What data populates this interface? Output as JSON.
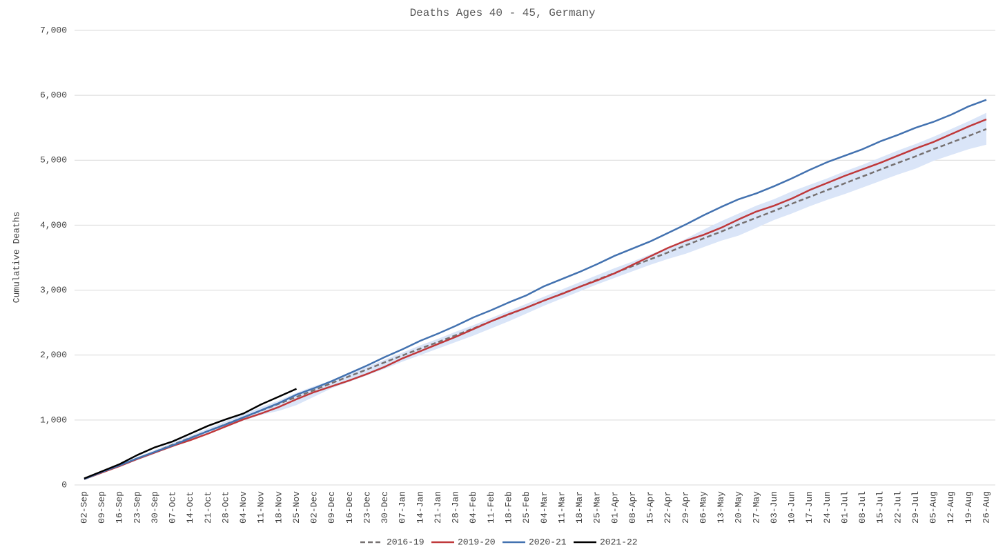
{
  "chart_data": {
    "type": "line",
    "title": "Deaths Ages 40 - 45, Germany",
    "y_label": "Cumulative Deaths",
    "categories": [
      "02-Sep",
      "09-Sep",
      "16-Sep",
      "23-Sep",
      "30-Sep",
      "07-Oct",
      "14-Oct",
      "21-Oct",
      "28-Oct",
      "04-Nov",
      "11-Nov",
      "18-Nov",
      "25-Nov",
      "02-Dec",
      "09-Dec",
      "16-Dec",
      "23-Dec",
      "30-Dec",
      "07-Jan",
      "14-Jan",
      "21-Jan",
      "28-Jan",
      "04-Feb",
      "11-Feb",
      "18-Feb",
      "25-Feb",
      "04-Mar",
      "11-Mar",
      "18-Mar",
      "25-Mar",
      "01-Apr",
      "08-Apr",
      "15-Apr",
      "22-Apr",
      "29-Apr",
      "06-May",
      "13-May",
      "20-May",
      "27-May",
      "03-Jun",
      "10-Jun",
      "17-Jun",
      "24-Jun",
      "01-Jul",
      "08-Jul",
      "15-Jul",
      "22-Jul",
      "29-Jul",
      "05-Aug",
      "12-Aug",
      "19-Aug",
      "26-Aug"
    ],
    "ylim": [
      0,
      7000
    ],
    "yticks": [
      0,
      {
        "value": 1000,
        "label": "1,000"
      },
      {
        "value": 2000,
        "label": "2,000"
      },
      {
        "value": 3000,
        "label": "3,000"
      },
      {
        "value": 4000,
        "label": "4,000"
      },
      {
        "value": 5000,
        "label": "5,000"
      },
      {
        "value": 6000,
        "label": "6,000"
      },
      {
        "value": 7000,
        "label": "7,000"
      }
    ],
    "grid": true,
    "legend": "bottom",
    "range_band": {
      "color": "#dae5f8",
      "lower": [
        80,
        180,
        280,
        380,
        480,
        590,
        690,
        790,
        890,
        990,
        1080,
        1140,
        1230,
        1360,
        1490,
        1590,
        1690,
        1790,
        1900,
        2000,
        2100,
        2200,
        2300,
        2410,
        2520,
        2640,
        2760,
        2870,
        2980,
        3090,
        3190,
        3290,
        3390,
        3480,
        3560,
        3660,
        3760,
        3840,
        3960,
        4080,
        4180,
        4290,
        4390,
        4480,
        4580,
        4680,
        4780,
        4870,
        4990,
        5080,
        5170,
        5240
      ],
      "upper": [
        100,
        210,
        320,
        430,
        540,
        650,
        760,
        870,
        980,
        1090,
        1200,
        1300,
        1420,
        1520,
        1610,
        1710,
        1820,
        1930,
        2040,
        2150,
        2250,
        2360,
        2460,
        2570,
        2680,
        2790,
        2900,
        3010,
        3120,
        3230,
        3340,
        3440,
        3550,
        3650,
        3790,
        3930,
        4060,
        4180,
        4300,
        4400,
        4520,
        4620,
        4720,
        4830,
        4930,
        5040,
        5150,
        5250,
        5360,
        5480,
        5600,
        5730
      ]
    },
    "series": [
      {
        "name": "2016-19",
        "color": "#767171",
        "dashed": true,
        "values": [
          90,
          195,
          300,
          405,
          510,
          620,
          725,
          830,
          935,
          1040,
          1145,
          1250,
          1355,
          1460,
          1570,
          1675,
          1780,
          1890,
          1995,
          2100,
          2200,
          2305,
          2410,
          2520,
          2625,
          2730,
          2840,
          2945,
          3050,
          3160,
          3265,
          3370,
          3475,
          3580,
          3690,
          3795,
          3900,
          4010,
          4115,
          4220,
          4330,
          4435,
          4540,
          4645,
          4750,
          4855,
          4960,
          5060,
          5170,
          5270,
          5375,
          5480
        ]
      },
      {
        "name": "2019-20",
        "color": "#c0393b",
        "values": [
          90,
          190,
          290,
          400,
          500,
          600,
          690,
          790,
          900,
          1010,
          1100,
          1200,
          1320,
          1430,
          1520,
          1610,
          1710,
          1820,
          1950,
          2060,
          2170,
          2280,
          2400,
          2520,
          2630,
          2730,
          2840,
          2940,
          3050,
          3150,
          3260,
          3390,
          3520,
          3650,
          3760,
          3850,
          3960,
          4090,
          4210,
          4300,
          4410,
          4540,
          4650,
          4760,
          4860,
          4960,
          5070,
          5180,
          5280,
          5400,
          5520,
          5630
        ]
      },
      {
        "name": "2020-21",
        "color": "#4372b0",
        "values": [
          90,
          200,
          300,
          410,
          510,
          610,
          720,
          830,
          930,
          1040,
          1150,
          1260,
          1390,
          1490,
          1600,
          1720,
          1840,
          1970,
          2090,
          2220,
          2330,
          2450,
          2580,
          2690,
          2810,
          2920,
          3060,
          3170,
          3280,
          3400,
          3530,
          3640,
          3750,
          3880,
          4010,
          4150,
          4280,
          4400,
          4490,
          4600,
          4720,
          4850,
          4970,
          5070,
          5170,
          5290,
          5390,
          5500,
          5590,
          5700,
          5830,
          5930
        ]
      },
      {
        "name": "2021-22",
        "color": "#000000",
        "values": [
          100,
          210,
          320,
          460,
          580,
          670,
          790,
          910,
          1010,
          1100,
          1240,
          1360,
          1480,
          null,
          null,
          null,
          null,
          null,
          null,
          null,
          null,
          null,
          null,
          null,
          null,
          null,
          null,
          null,
          null,
          null,
          null,
          null,
          null,
          null,
          null,
          null,
          null,
          null,
          null,
          null,
          null,
          null,
          null,
          null,
          null,
          null,
          null,
          null,
          null,
          null,
          null,
          null
        ]
      }
    ]
  }
}
